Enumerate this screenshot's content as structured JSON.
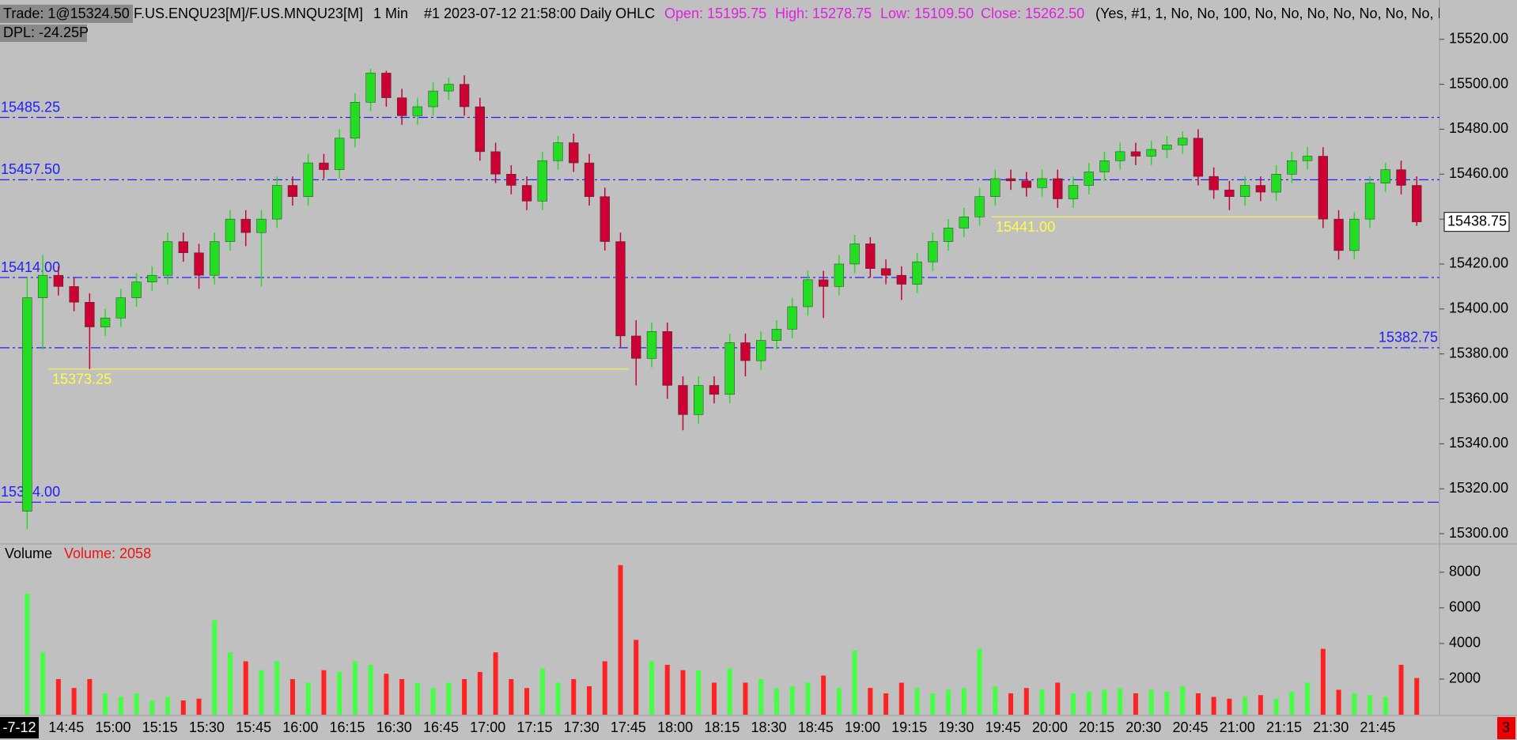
{
  "header": {
    "trade": "Trade: 1@15324.50",
    "symbol": "F.US.ENQU23[M]/F.US.MNQU23[M]",
    "interval": "1 Min",
    "bar_info": "#1 2023-07-12 21:58:00 Daily OHLC",
    "open": "Open: 15195.75",
    "high": "High: 15278.75",
    "low": "Low: 15109.50",
    "close": "Close: 15262.50",
    "study_params": "(Yes, #1, 1, No, No, 100, No, No, No, No, No, No, No, I",
    "dpl": "DPL: -24.25P"
  },
  "chart_data": [
    {
      "type": "candlestick",
      "up_color": "#22dd22",
      "down_color": "#cc0033",
      "categories": [
        "-7-12",
        null,
        null,
        "14:45",
        null,
        null,
        "15:00",
        null,
        null,
        "15:15",
        null,
        null,
        "15:30",
        null,
        null,
        "15:45",
        null,
        null,
        "16:00",
        null,
        null,
        "16:15",
        null,
        null,
        "16:30",
        null,
        null,
        "16:45",
        null,
        null,
        "17:00",
        null,
        null,
        "17:15",
        null,
        null,
        "17:30",
        null,
        null,
        "17:45",
        null,
        null,
        "18:00",
        null,
        null,
        "18:15",
        null,
        null,
        "18:30",
        null,
        null,
        "18:45",
        null,
        null,
        "19:00",
        null,
        null,
        "19:15",
        null,
        null,
        "19:30",
        null,
        null,
        "19:45",
        null,
        null,
        "20:00",
        null,
        null,
        "20:15",
        null,
        null,
        "20:30",
        null,
        null,
        "20:45",
        null,
        null,
        "21:00",
        null,
        null,
        "21:15",
        null,
        null,
        "21:30",
        null,
        null,
        "21:45",
        null,
        null
      ],
      "open": [
        15310,
        15405,
        15415,
        15410,
        15403,
        15392,
        15396,
        15405,
        15412,
        15415,
        15430,
        15425,
        15415,
        15430,
        15440,
        15434,
        15440,
        15455,
        15450,
        15465,
        15462,
        15476,
        15492,
        15505,
        15494,
        15486,
        15490,
        15497,
        15500,
        15490,
        15470,
        15460,
        15455,
        15448,
        15466,
        15474,
        15465,
        15450,
        15430,
        15388,
        15378,
        15390,
        15366,
        15353,
        15366,
        15362,
        15385,
        15377,
        15386,
        15391,
        15401,
        15413,
        15410,
        15420,
        15429,
        15418,
        15415,
        15411,
        15421,
        15430,
        15436,
        15441,
        15450,
        15458,
        15457,
        15454,
        15458,
        15449,
        15455,
        15461,
        15466,
        15470,
        15468,
        15471,
        15473,
        15476,
        15459,
        15453,
        15450,
        15455,
        15452,
        15460,
        15466,
        15468,
        15440,
        15426,
        15440,
        15456,
        15462,
        15455
      ],
      "high": [
        15414,
        15424,
        15419,
        15414,
        15407,
        15400,
        15409,
        15416,
        15419,
        15434,
        15434,
        15429,
        15434,
        15444,
        15444,
        15444,
        15459,
        15459,
        15469,
        15469,
        15480,
        15496,
        15507,
        15506,
        15498,
        15494,
        15501,
        15503,
        15504,
        15494,
        15474,
        15464,
        15459,
        15470,
        15477,
        15478,
        15469,
        15454,
        15434,
        15395,
        15394,
        15394,
        15370,
        15370,
        15370,
        15389,
        15389,
        15390,
        15395,
        15405,
        15417,
        15417,
        15424,
        15433,
        15432,
        15422,
        15419,
        15425,
        15434,
        15440,
        15445,
        15454,
        15462,
        15462,
        15461,
        15462,
        15462,
        15459,
        15465,
        15470,
        15474,
        15474,
        15475,
        15477,
        15479,
        15480,
        15463,
        15457,
        15459,
        15459,
        15464,
        15470,
        15472,
        15472,
        15444,
        15443,
        15459,
        15465,
        15466,
        15459
      ],
      "low": [
        15302,
        15382,
        15406,
        15399,
        15373.25,
        15388,
        15392,
        15401,
        15408,
        15411,
        15421,
        15409,
        15411,
        15426,
        15428,
        15410,
        15436,
        15446,
        15446,
        15458,
        15458,
        15472,
        15488,
        15490,
        15482,
        15482,
        15486,
        15493,
        15486,
        15466,
        15456,
        15451,
        15444,
        15444,
        15462,
        15461,
        15446,
        15426,
        15383,
        15366,
        15374,
        15360,
        15346,
        15349,
        15358,
        15358,
        15370,
        15373,
        15382,
        15387,
        15397,
        15396,
        15406,
        15416,
        15414,
        15411,
        15404,
        15407,
        15417,
        15426,
        15432,
        15437,
        15446,
        15453,
        15450,
        15450,
        15445,
        15445,
        15451,
        15457,
        15462,
        15464,
        15464,
        15467,
        15469,
        15455,
        15449,
        15444,
        15446,
        15448,
        15448,
        15456,
        15462,
        15436,
        15422,
        15422,
        15436,
        15452,
        15451,
        15437
      ],
      "close": [
        15405,
        15415,
        15410,
        15403,
        15392,
        15396,
        15405,
        15412,
        15415,
        15430,
        15425,
        15415,
        15430,
        15440,
        15434,
        15440,
        15455,
        15450,
        15465,
        15462,
        15476,
        15492,
        15505,
        15494,
        15486,
        15490,
        15497,
        15500,
        15490,
        15470,
        15460,
        15455,
        15448,
        15466,
        15474,
        15465,
        15450,
        15430,
        15388,
        15378,
        15390,
        15366,
        15353,
        15366,
        15362,
        15385,
        15377,
        15386,
        15391,
        15401,
        15413,
        15410,
        15420,
        15429,
        15418,
        15415,
        15411,
        15421,
        15430,
        15436,
        15441,
        15450,
        15458,
        15457,
        15454,
        15458,
        15449,
        15455,
        15461,
        15466,
        15470,
        15468,
        15471,
        15473,
        15476,
        15459,
        15453,
        15450,
        15455,
        15452,
        15460,
        15466,
        15468,
        15440,
        15426,
        15440,
        15456,
        15462,
        15455,
        15438.75
      ],
      "ylim": [
        15296.5,
        15537.5
      ],
      "yticks": [
        {
          "value": 15300,
          "label": "15300.00"
        },
        {
          "value": 15320,
          "label": "15320.00"
        },
        {
          "value": 15340,
          "label": "15340.00"
        },
        {
          "value": 15360,
          "label": "15360.00"
        },
        {
          "value": 15380,
          "label": "15380.00"
        },
        {
          "value": 15400,
          "label": "15400.00"
        },
        {
          "value": 15420,
          "label": "15420.00"
        },
        {
          "value": 15440,
          "label": "15440.00"
        },
        {
          "value": 15460,
          "label": "15460.00"
        },
        {
          "value": 15480,
          "label": "15480.00"
        },
        {
          "value": 15500,
          "label": "15500.00"
        },
        {
          "value": 15520,
          "label": "15520.00"
        }
      ],
      "levels": [
        {
          "value": 15485.25,
          "label": "15485.25",
          "style": "dashdot",
          "side": "left",
          "color": "#2020ff"
        },
        {
          "value": 15457.5,
          "label": "15457.50",
          "style": "dashdot",
          "side": "left",
          "color": "#2020ff"
        },
        {
          "value": 15414,
          "label": "15414.00",
          "style": "dashdot",
          "side": "left",
          "color": "#2020ff"
        },
        {
          "value": 15382.75,
          "label": "15382.75",
          "style": "dashdot",
          "side": "right",
          "color": "#2020ff"
        },
        {
          "value": 15314,
          "label": "15314.00",
          "style": "dashed",
          "side": "left",
          "color": "#2020ff"
        }
      ],
      "highlights": [
        {
          "value": 15373.25,
          "label": "15373.25",
          "color": "#ffff40"
        },
        {
          "value": 15441,
          "label": "15441.00",
          "color": "#ffff40"
        }
      ]
    },
    {
      "type": "bar",
      "title": "Volume",
      "legend": "Volume: 2058",
      "up_color": "#44ff44",
      "down_color": "#ff2222",
      "values": [
        6800,
        3500,
        2000,
        1500,
        2000,
        1200,
        1000,
        1200,
        800,
        1000,
        800,
        900,
        5300,
        3500,
        3000,
        2500,
        3000,
        2000,
        1800,
        2500,
        2400,
        3000,
        2800,
        2300,
        2000,
        1800,
        1500,
        1800,
        2000,
        2400,
        3500,
        2000,
        1500,
        2600,
        1800,
        2000,
        1600,
        3000,
        8400,
        4200,
        3000,
        2800,
        2500,
        2500,
        1800,
        2600,
        1800,
        2000,
        1500,
        1600,
        1800,
        2200,
        1500,
        3600,
        1500,
        1200,
        1800,
        1500,
        1200,
        1400,
        1500,
        3700,
        1600,
        1200,
        1500,
        1400,
        1800,
        1200,
        1300,
        1400,
        1500,
        1200,
        1400,
        1300,
        1600,
        1200,
        1000,
        900,
        1000,
        1100,
        900,
        1300,
        1800,
        3700,
        1400,
        1200,
        1100,
        1000,
        2800,
        2058
      ],
      "ylim": [
        0,
        9500
      ],
      "yticks": [
        2000,
        4000,
        6000,
        8000
      ]
    }
  ],
  "badge": "3"
}
